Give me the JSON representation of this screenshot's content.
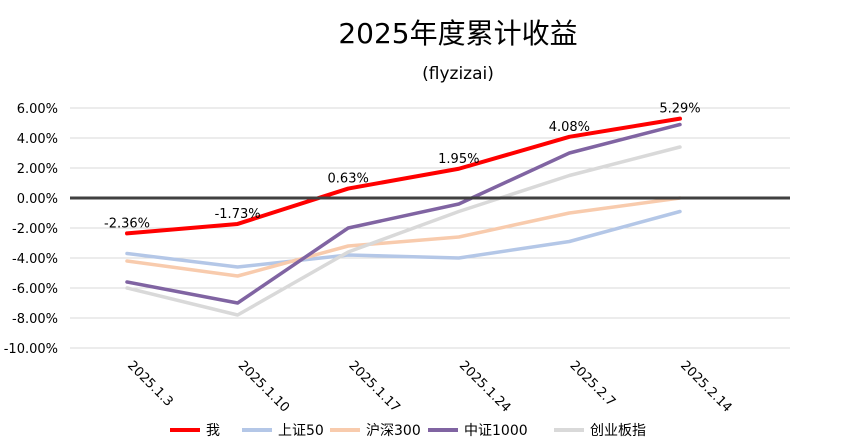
{
  "chart_data": {
    "type": "line",
    "title": "2025年度累计收益",
    "subtitle": "(flyzizai)",
    "categories": [
      "2025.1.3",
      "2025.1.10",
      "2025.1.17",
      "2025.1.24",
      "2025.2.7",
      "2025.2.14"
    ],
    "ylim": [
      -10,
      6
    ],
    "yticks": [
      "6.00%",
      "4.00%",
      "2.00%",
      "0.00%",
      "-2.00%",
      "-4.00%",
      "-6.00%",
      "-8.00%",
      "-10.00%"
    ],
    "grid": true,
    "legend_position": "bottom",
    "series": [
      {
        "name": "我",
        "color": "#ff0000",
        "values": [
          -2.36,
          -1.73,
          0.63,
          1.95,
          4.08,
          5.29
        ],
        "labels": [
          "-2.36%",
          "-1.73%",
          "0.63%",
          "1.95%",
          "4.08%",
          "5.29%"
        ]
      },
      {
        "name": "上证50",
        "color": "#b4c7e7",
        "values": [
          -3.7,
          -4.6,
          -3.8,
          -4.0,
          -2.9,
          -0.9
        ]
      },
      {
        "name": "沪深300",
        "color": "#f8cbad",
        "values": [
          -4.2,
          -5.2,
          -3.2,
          -2.6,
          -1.0,
          0.0
        ]
      },
      {
        "name": "中证1000",
        "color": "#8064a2",
        "values": [
          -5.6,
          -7.0,
          -2.0,
          -0.4,
          3.0,
          4.9
        ]
      },
      {
        "name": "创业板指",
        "color": "#d9d9d9",
        "values": [
          -6.0,
          -7.8,
          -3.6,
          -0.9,
          1.5,
          3.4
        ]
      }
    ]
  }
}
